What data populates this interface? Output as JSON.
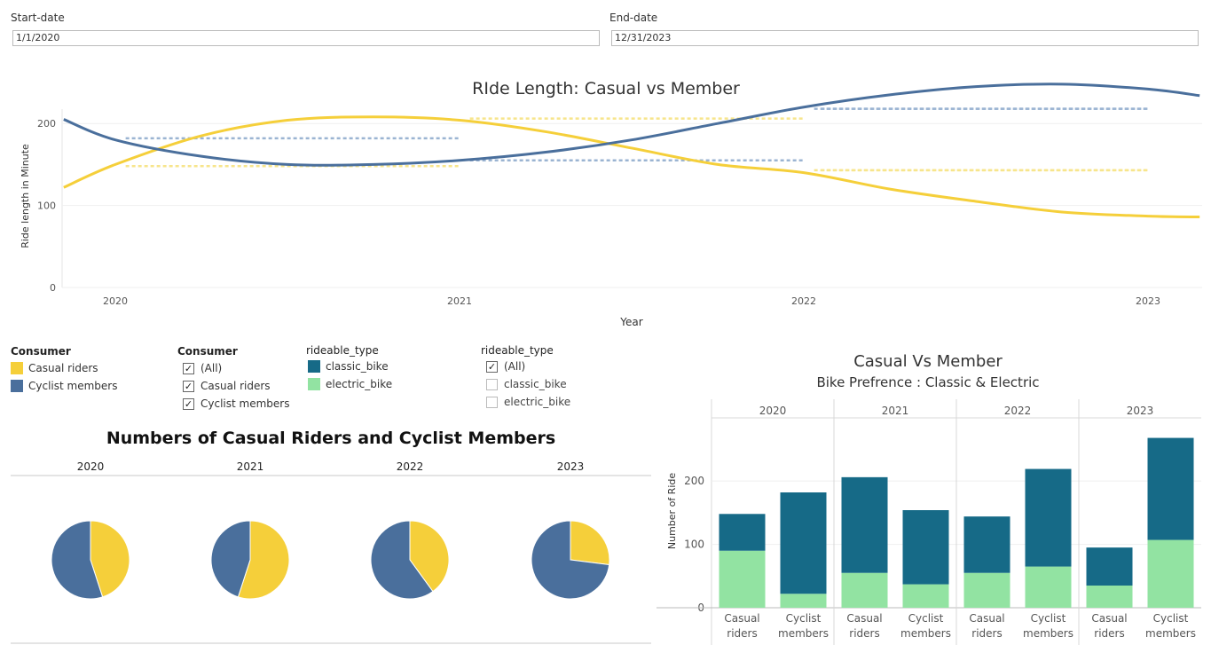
{
  "filters": {
    "start_label": "Start-date",
    "start_value": "1/1/2020",
    "end_label": "End-date",
    "end_value": "12/31/2023"
  },
  "legends": {
    "consumer_color": {
      "title": "Consumer",
      "items": [
        {
          "label": "Casual riders",
          "color": "#F5CF3A"
        },
        {
          "label": "Cyclist members",
          "color": "#4A6F9C"
        }
      ]
    },
    "consumer_filter": {
      "title": "Consumer",
      "items": [
        {
          "label": "(All)",
          "checked": true
        },
        {
          "label": "Casual riders",
          "checked": true
        },
        {
          "label": "Cyclist members",
          "checked": true
        }
      ]
    },
    "rideable_color": {
      "title": "rideable_type",
      "items": [
        {
          "label": "classic_bike",
          "color": "#166A87"
        },
        {
          "label": "electric_bike",
          "color": "#92E3A2"
        }
      ]
    },
    "rideable_filter": {
      "title": "rideable_type",
      "items": [
        {
          "label": "(All)",
          "checked": true
        },
        {
          "label": "classic_bike",
          "checked": false
        },
        {
          "label": "electric_bike",
          "checked": false
        }
      ]
    }
  },
  "chart_data": [
    {
      "type": "line",
      "title": "RIde Length: Casual vs Member",
      "xlabel": "Year",
      "ylabel": "Ride length in Minute",
      "x_ticks": [
        "2020",
        "2021",
        "2022",
        "2023"
      ],
      "y_ticks": [
        0,
        100,
        200
      ],
      "ylim": [
        0,
        250
      ],
      "grid": true,
      "series": [
        {
          "name": "Casual riders",
          "color": "#F5CF3A",
          "trend": [
            [
              2019.85,
              122
            ],
            [
              2020.0,
              150
            ],
            [
              2020.25,
              185
            ],
            [
              2020.5,
              204
            ],
            [
              2020.75,
              208
            ],
            [
              2021.0,
              204
            ],
            [
              2021.25,
              190
            ],
            [
              2021.5,
              170
            ],
            [
              2021.75,
              150
            ],
            [
              2022.0,
              140
            ],
            [
              2022.25,
              120
            ],
            [
              2022.5,
              105
            ],
            [
              2022.75,
              92
            ],
            [
              2023.0,
              87
            ],
            [
              2023.15,
              86
            ]
          ],
          "yearly_mean": [
            {
              "year": "2020",
              "value": 148
            },
            {
              "year": "2021",
              "value": 206
            },
            {
              "year": "2022",
              "value": 143
            },
            {
              "year": "2023",
              "value": 143
            }
          ]
        },
        {
          "name": "Cyclist members",
          "color": "#4A6F9C",
          "trend": [
            [
              2019.85,
              205
            ],
            [
              2020.0,
              180
            ],
            [
              2020.25,
              160
            ],
            [
              2020.5,
              150
            ],
            [
              2020.75,
              150
            ],
            [
              2021.0,
              155
            ],
            [
              2021.25,
              165
            ],
            [
              2021.5,
              180
            ],
            [
              2021.75,
              200
            ],
            [
              2022.0,
              220
            ],
            [
              2022.25,
              235
            ],
            [
              2022.5,
              245
            ],
            [
              2022.75,
              248
            ],
            [
              2023.0,
              242
            ],
            [
              2023.15,
              234
            ]
          ],
          "yearly_mean": [
            {
              "year": "2020",
              "value": 182
            },
            {
              "year": "2021",
              "value": 155
            },
            {
              "year": "2022",
              "value": 218
            },
            {
              "year": "2023",
              "value": 218
            }
          ]
        }
      ]
    },
    {
      "type": "pie",
      "title": "Numbers of Casual Riders and Cyclist Members",
      "categories": [
        "Casual riders",
        "Cyclist members"
      ],
      "colors": [
        "#F5CF3A",
        "#4A6F9C"
      ],
      "pies": [
        {
          "year": "2020",
          "values": [
            45,
            55
          ]
        },
        {
          "year": "2021",
          "values": [
            55,
            45
          ]
        },
        {
          "year": "2022",
          "values": [
            40,
            60
          ]
        },
        {
          "year": "2023",
          "values": [
            27,
            73
          ]
        }
      ]
    },
    {
      "type": "bar",
      "stacked": true,
      "title": "Casual Vs Member",
      "subtitle": "Bike Prefrence : Classic & Electric",
      "ylabel": "Number of Ride",
      "y_ticks": [
        0,
        100,
        200
      ],
      "ylim": [
        0,
        280
      ],
      "years": [
        "2020",
        "2021",
        "2022",
        "2023"
      ],
      "categories": [
        "Casual riders",
        "Cyclist members"
      ],
      "category_lines": [
        [
          "Casual",
          "riders"
        ],
        [
          "Cyclist",
          "members"
        ]
      ],
      "series": [
        {
          "name": "electric_bike",
          "color": "#92E3A2",
          "values": [
            [
              90,
              22
            ],
            [
              55,
              37
            ],
            [
              55,
              65
            ],
            [
              35,
              107
            ]
          ]
        },
        {
          "name": "classic_bike",
          "color": "#166A87",
          "values": [
            [
              58,
              160
            ],
            [
              151,
              117
            ],
            [
              89,
              154
            ],
            [
              60,
              161
            ]
          ]
        }
      ]
    }
  ]
}
